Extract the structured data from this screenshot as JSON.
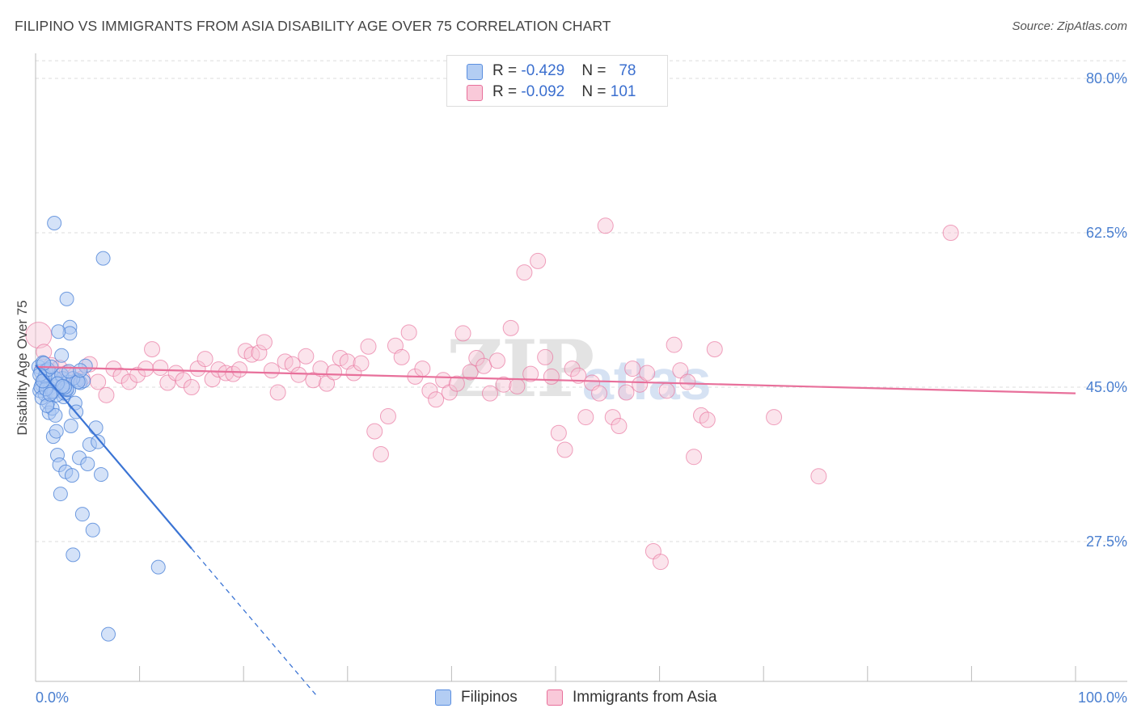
{
  "title": "FILIPINO VS IMMIGRANTS FROM ASIA DISABILITY AGE OVER 75 CORRELATION CHART",
  "source": "Source: ZipAtlas.com",
  "watermark": {
    "zip": "ZIP",
    "atlas": "atlas"
  },
  "legend": {
    "filipinos": {
      "r_label": "R = ",
      "r_value": "-0.429",
      "n_label": "N = ",
      "n_value": "78"
    },
    "asia": {
      "r_label": "R = ",
      "r_value": "-0.092",
      "n_label": "N = ",
      "n_value": "101"
    }
  },
  "bottom_legend": {
    "filipinos": "Filipinos",
    "asia": "Immigrants from Asia"
  },
  "colors": {
    "blue": "#5b8fe0",
    "blue_fill": "#a9c6f1",
    "pink": "#e8709b",
    "pink_fill": "#f6bdd0",
    "axis_text": "#4a7fd0"
  },
  "chart_data": {
    "type": "scatter",
    "title": "FILIPINO VS IMMIGRANTS FROM ASIA DISABILITY AGE OVER 75 CORRELATION CHART",
    "xlabel": "",
    "ylabel": "Disability Age Over 75",
    "xlim": [
      0,
      100
    ],
    "ylim": [
      10,
      82
    ],
    "y_ticks": [
      "80.0%",
      "62.5%",
      "45.0%",
      "27.5%"
    ],
    "y_tick_values": [
      80,
      62.5,
      45,
      27.5
    ],
    "x_ticks": [
      "0.0%",
      "100.0%"
    ],
    "grid": true,
    "legend_position": "top-center",
    "series": [
      {
        "name": "Filipinos",
        "color": "#5b8fe0",
        "trend": {
          "x": [
            0,
            15
          ],
          "y": [
            47.5,
            26.7
          ],
          "dashed_to_x": 27
        },
        "points": [
          [
            0.3,
            47.3
          ],
          [
            0.5,
            46.8
          ],
          [
            0.6,
            45.3
          ],
          [
            0.4,
            44.6
          ],
          [
            0.7,
            47.8
          ],
          [
            0.8,
            45.9
          ],
          [
            0.9,
            44.2
          ],
          [
            1.0,
            46.9
          ],
          [
            1.1,
            45.1
          ],
          [
            1.2,
            43.3
          ],
          [
            1.3,
            42.1
          ],
          [
            1.4,
            44.9
          ],
          [
            1.5,
            46.5
          ],
          [
            1.6,
            42.6
          ],
          [
            1.7,
            39.4
          ],
          [
            1.8,
            44.5
          ],
          [
            1.9,
            41.8
          ],
          [
            2.0,
            40.0
          ],
          [
            2.1,
            37.3
          ],
          [
            2.2,
            45.5
          ],
          [
            2.3,
            36.2
          ],
          [
            2.4,
            32.9
          ],
          [
            2.5,
            48.6
          ],
          [
            2.6,
            46.0
          ],
          [
            2.7,
            43.9
          ],
          [
            2.8,
            44.3
          ],
          [
            2.9,
            35.4
          ],
          [
            3.0,
            44.7
          ],
          [
            3.1,
            45.6
          ],
          [
            3.2,
            44.7
          ],
          [
            3.3,
            51.8
          ],
          [
            3.4,
            40.6
          ],
          [
            3.5,
            35.0
          ],
          [
            3.6,
            26.0
          ],
          [
            3.8,
            43.2
          ],
          [
            3.9,
            42.2
          ],
          [
            4.0,
            45.8
          ],
          [
            4.2,
            37.0
          ],
          [
            4.3,
            45.5
          ],
          [
            4.5,
            30.6
          ],
          [
            4.6,
            45.7
          ],
          [
            4.8,
            47.4
          ],
          [
            5.0,
            36.3
          ],
          [
            5.2,
            38.5
          ],
          [
            5.5,
            28.8
          ],
          [
            6.0,
            38.8
          ],
          [
            6.3,
            35.1
          ],
          [
            7.0,
            17.0
          ],
          [
            1.8,
            63.6
          ],
          [
            6.5,
            59.6
          ],
          [
            3.0,
            55.0
          ],
          [
            3.3,
            51.1
          ],
          [
            2.2,
            51.3
          ],
          [
            1.9,
            46.0
          ],
          [
            0.5,
            45.0
          ],
          [
            0.9,
            46.2
          ],
          [
            2.0,
            44.1
          ],
          [
            1.2,
            47.0
          ],
          [
            1.5,
            47.3
          ],
          [
            2.5,
            46.4
          ],
          [
            3.0,
            44.8
          ],
          [
            3.6,
            46.0
          ],
          [
            4.1,
            45.6
          ],
          [
            0.6,
            43.8
          ],
          [
            1.1,
            42.9
          ],
          [
            2.8,
            45.0
          ],
          [
            3.2,
            46.8
          ],
          [
            1.6,
            44.5
          ],
          [
            4.3,
            46.9
          ],
          [
            0.8,
            47.7
          ],
          [
            2.1,
            45.4
          ],
          [
            1.0,
            44.8
          ],
          [
            5.8,
            40.4
          ],
          [
            11.8,
            24.6
          ],
          [
            0.4,
            46.4
          ],
          [
            0.7,
            45.7
          ],
          [
            1.4,
            44.2
          ],
          [
            2.6,
            45.1
          ]
        ]
      },
      {
        "name": "Immigrants from Asia",
        "color": "#e8709b",
        "trend": {
          "x": [
            0,
            100
          ],
          "y": [
            47.3,
            44.3
          ]
        },
        "points": [
          [
            0.3,
            50.9
          ],
          [
            0.8,
            49.0
          ],
          [
            1.5,
            47.5
          ],
          [
            2.3,
            47.2
          ],
          [
            3.0,
            46.6
          ],
          [
            3.8,
            46.4
          ],
          [
            4.5,
            46.0
          ],
          [
            5.2,
            47.6
          ],
          [
            6.0,
            45.6
          ],
          [
            6.8,
            44.1
          ],
          [
            7.5,
            47.1
          ],
          [
            8.2,
            46.3
          ],
          [
            9.0,
            45.6
          ],
          [
            9.8,
            46.4
          ],
          [
            10.6,
            47.1
          ],
          [
            11.2,
            49.3
          ],
          [
            12.0,
            47.2
          ],
          [
            12.7,
            45.5
          ],
          [
            13.5,
            46.6
          ],
          [
            14.2,
            45.8
          ],
          [
            15.0,
            45.0
          ],
          [
            15.6,
            47.1
          ],
          [
            16.3,
            48.2
          ],
          [
            17.0,
            45.9
          ],
          [
            17.6,
            47.0
          ],
          [
            18.3,
            46.6
          ],
          [
            19.0,
            46.5
          ],
          [
            19.6,
            47.0
          ],
          [
            20.2,
            49.1
          ],
          [
            20.8,
            48.7
          ],
          [
            21.5,
            48.9
          ],
          [
            22.0,
            50.1
          ],
          [
            22.7,
            46.9
          ],
          [
            23.3,
            44.4
          ],
          [
            24.0,
            47.9
          ],
          [
            24.7,
            47.6
          ],
          [
            25.3,
            46.4
          ],
          [
            26.0,
            48.5
          ],
          [
            26.7,
            45.8
          ],
          [
            27.4,
            47.1
          ],
          [
            28.0,
            45.4
          ],
          [
            28.7,
            46.7
          ],
          [
            29.3,
            48.3
          ],
          [
            30.0,
            47.9
          ],
          [
            30.6,
            46.6
          ],
          [
            31.3,
            47.7
          ],
          [
            32.0,
            49.6
          ],
          [
            32.6,
            40.0
          ],
          [
            33.2,
            37.4
          ],
          [
            33.9,
            41.7
          ],
          [
            34.6,
            49.7
          ],
          [
            35.2,
            48.4
          ],
          [
            35.9,
            51.2
          ],
          [
            36.5,
            46.2
          ],
          [
            37.2,
            47.1
          ],
          [
            37.9,
            44.6
          ],
          [
            38.5,
            43.6
          ],
          [
            39.2,
            45.8
          ],
          [
            39.8,
            44.4
          ],
          [
            40.5,
            45.4
          ],
          [
            41.1,
            51.1
          ],
          [
            41.8,
            46.7
          ],
          [
            42.4,
            48.3
          ],
          [
            43.1,
            47.4
          ],
          [
            43.7,
            44.3
          ],
          [
            44.4,
            48.0
          ],
          [
            45.0,
            45.3
          ],
          [
            45.7,
            51.7
          ],
          [
            46.3,
            45.1
          ],
          [
            47.0,
            58.0
          ],
          [
            47.6,
            46.5
          ],
          [
            48.3,
            59.3
          ],
          [
            49.0,
            48.4
          ],
          [
            49.6,
            46.2
          ],
          [
            50.3,
            39.8
          ],
          [
            50.9,
            37.9
          ],
          [
            51.6,
            47.1
          ],
          [
            52.2,
            46.3
          ],
          [
            52.9,
            41.6
          ],
          [
            53.5,
            45.5
          ],
          [
            54.2,
            44.3
          ],
          [
            54.8,
            63.3
          ],
          [
            55.5,
            41.6
          ],
          [
            56.1,
            40.6
          ],
          [
            56.8,
            44.4
          ],
          [
            57.4,
            47.1
          ],
          [
            58.1,
            45.3
          ],
          [
            58.8,
            46.6
          ],
          [
            59.4,
            26.4
          ],
          [
            60.1,
            25.2
          ],
          [
            60.7,
            44.6
          ],
          [
            61.4,
            49.8
          ],
          [
            62.0,
            46.9
          ],
          [
            62.7,
            45.6
          ],
          [
            63.3,
            37.1
          ],
          [
            64.0,
            41.8
          ],
          [
            64.6,
            41.3
          ],
          [
            65.3,
            49.3
          ],
          [
            71.0,
            41.6
          ],
          [
            75.3,
            34.9
          ],
          [
            88.0,
            62.5
          ]
        ]
      }
    ]
  }
}
